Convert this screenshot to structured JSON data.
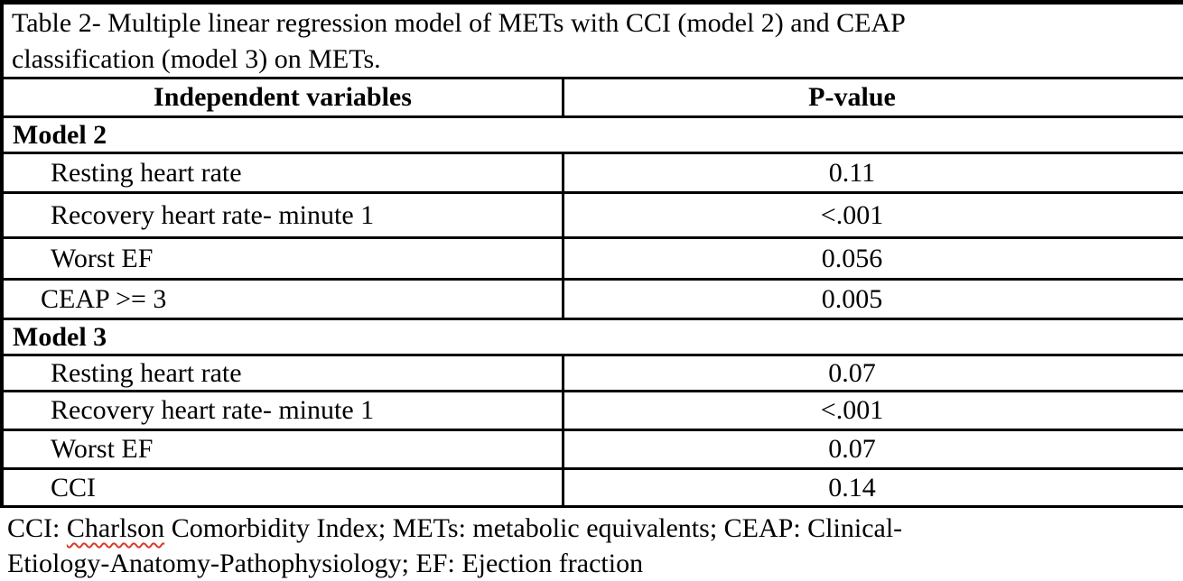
{
  "colors": {
    "background": "#ffffff",
    "text": "#000000",
    "border": "#000000",
    "spellcheck_underline": "#d93b2b"
  },
  "table": {
    "caption_lines": [
      "Table 2- Multiple linear regression model of METs with CCI (model 2) and CEAP",
      "classification (model 3) on METs."
    ],
    "header": {
      "independent_variables": "Independent variables",
      "p_value": "P-value"
    },
    "rows": [
      {
        "type": "section",
        "label": "Model 2"
      },
      {
        "type": "data",
        "label": "Resting heart rate",
        "p_value": "0.11"
      },
      {
        "type": "data",
        "label": "Recovery heart rate- minute 1",
        "p_value": "<.001"
      },
      {
        "type": "data",
        "label": "Worst EF",
        "p_value": "0.056"
      },
      {
        "type": "data",
        "label": "CEAP >= 3",
        "p_value": "0.005"
      },
      {
        "type": "section",
        "label": "Model 3"
      },
      {
        "type": "data",
        "label": "Resting heart rate",
        "p_value": "0.07"
      },
      {
        "type": "data",
        "label": "Recovery heart rate- minute 1",
        "p_value": "<.001"
      },
      {
        "type": "data",
        "label": "Worst EF",
        "p_value": "0.07"
      },
      {
        "type": "data",
        "label": "CCI",
        "p_value": "0.14"
      }
    ],
    "footnote": {
      "line1_prefix": "CCI: ",
      "line1_misspelled": "Charlson",
      "line1_rest": " Comorbidity Index; METs: metabolic equivalents; CEAP: Clinical-",
      "line2": "Etiology-Anatomy-Pathophysiology; EF: Ejection fraction"
    }
  }
}
